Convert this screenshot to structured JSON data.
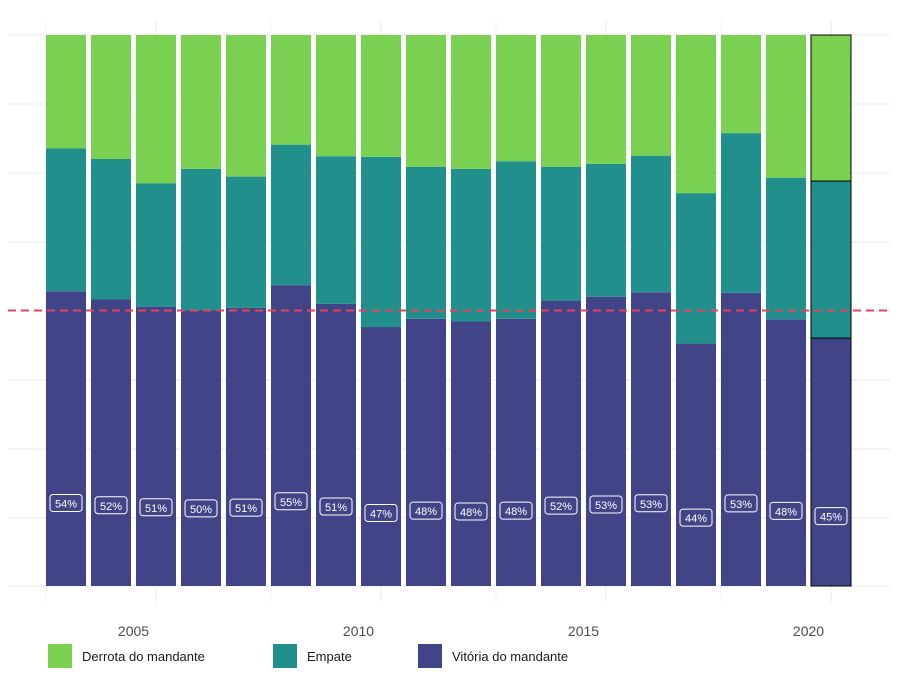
{
  "chart_data": {
    "type": "bar",
    "stacked": true,
    "normalized": true,
    "x": [
      2003,
      2004,
      2005,
      2006,
      2007,
      2008,
      2009,
      2010,
      2011,
      2012,
      2013,
      2014,
      2015,
      2016,
      2017,
      2018,
      2019,
      2020
    ],
    "x_ticks": [
      "2005",
      "2010",
      "2015",
      "2020"
    ],
    "series": [
      {
        "name": "Vitória do mandante",
        "color": "#414487",
        "values": [
          0.535,
          0.52,
          0.507,
          0.5,
          0.505,
          0.546,
          0.512,
          0.47,
          0.485,
          0.48,
          0.485,
          0.518,
          0.525,
          0.533,
          0.44,
          0.532,
          0.484,
          0.45
        ]
      },
      {
        "name": "Empate",
        "color": "#21908C",
        "values": [
          0.259,
          0.255,
          0.224,
          0.257,
          0.238,
          0.255,
          0.268,
          0.309,
          0.276,
          0.277,
          0.286,
          0.243,
          0.241,
          0.248,
          0.273,
          0.29,
          0.257,
          0.285
        ]
      },
      {
        "name": "Derrota do mandante",
        "color": "#7AD151",
        "values": [
          0.206,
          0.225,
          0.269,
          0.243,
          0.257,
          0.199,
          0.22,
          0.221,
          0.239,
          0.243,
          0.229,
          0.239,
          0.234,
          0.219,
          0.287,
          0.178,
          0.259,
          0.265
        ]
      }
    ],
    "data_labels": [
      "54%",
      "52%",
      "51%",
      "50%",
      "51%",
      "55%",
      "51%",
      "47%",
      "48%",
      "48%",
      "48%",
      "52%",
      "53%",
      "53%",
      "44%",
      "53%",
      "48%",
      "45%"
    ],
    "reference_line": {
      "y": 0.5,
      "color": "#E0455A",
      "style": "dashed"
    },
    "highlighted_year": 2020,
    "ylim": [
      0,
      1
    ],
    "xlim": [
      2002.45,
      2020.75
    ],
    "grid": true,
    "legend_position": "bottom"
  },
  "legend": {
    "items": [
      {
        "label": "Derrota do mandante",
        "color": "#7AD151"
      },
      {
        "label": "Empate",
        "color": "#21908C"
      },
      {
        "label": "Vitória do mandante",
        "color": "#414487"
      }
    ]
  }
}
